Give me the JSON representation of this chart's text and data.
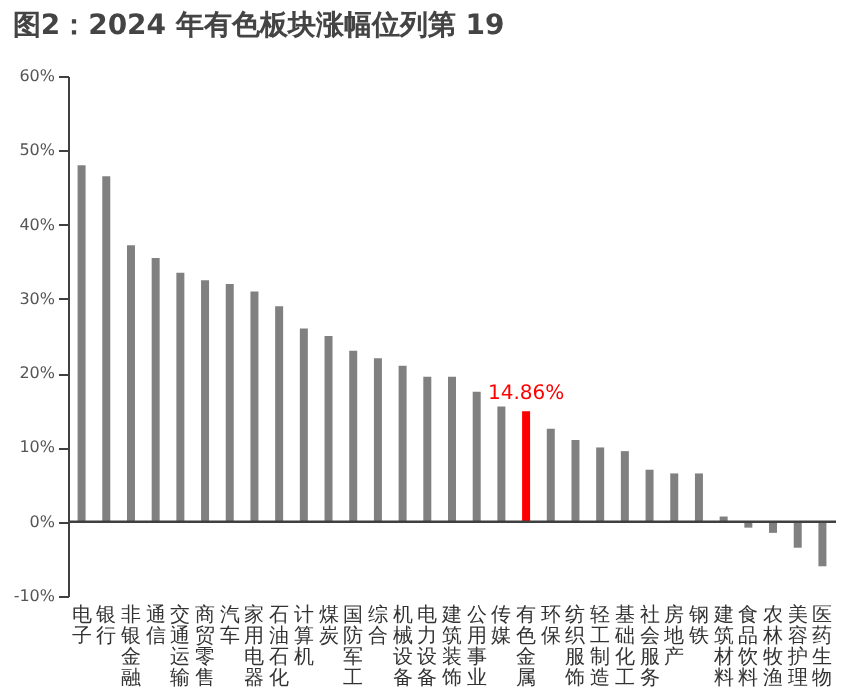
{
  "chart_data": {
    "type": "bar",
    "title": "图2：2024 年有色板块涨幅位列第 19",
    "categories": [
      "电子",
      "银行",
      "非银金融",
      "通信",
      "交通运输",
      "商贸零售",
      "汽车",
      "家用电器",
      "石油石化",
      "计算机",
      "煤炭",
      "国防军工",
      "综合",
      "机械设备",
      "电力设备",
      "建筑装饰",
      "公用事业",
      "传媒",
      "有色金属",
      "环保",
      "纺织服饰",
      "轻工制造",
      "基础化工",
      "社会服务",
      "房地产",
      "钢铁",
      "建筑材料",
      "食品饮料",
      "农林牧渔",
      "美容护理",
      "医药生物"
    ],
    "values": [
      48,
      46.5,
      37.2,
      35.5,
      33.5,
      32.5,
      32,
      31,
      29,
      26,
      25,
      23,
      22,
      21,
      19.5,
      19.5,
      17.5,
      15.5,
      14.86,
      12.5,
      11,
      10,
      9.5,
      7,
      6.5,
      6.5,
      0.7,
      -0.8,
      -1.5,
      -3.5,
      -6
    ],
    "colors": [
      "#808080",
      "#808080",
      "#808080",
      "#808080",
      "#808080",
      "#808080",
      "#808080",
      "#808080",
      "#808080",
      "#808080",
      "#808080",
      "#808080",
      "#808080",
      "#808080",
      "#808080",
      "#808080",
      "#808080",
      "#808080",
      "#ff0000",
      "#808080",
      "#808080",
      "#808080",
      "#808080",
      "#808080",
      "#808080",
      "#808080",
      "#808080",
      "#808080",
      "#808080",
      "#808080",
      "#808080"
    ],
    "value_labels": [
      null,
      null,
      null,
      null,
      null,
      null,
      null,
      null,
      null,
      null,
      null,
      null,
      null,
      null,
      null,
      null,
      null,
      null,
      "14.86%",
      null,
      null,
      null,
      null,
      null,
      null,
      null,
      null,
      null,
      null,
      null,
      null
    ],
    "ylim": [
      -10,
      60
    ],
    "yticks": [
      {
        "value": -10,
        "label": "-10%"
      },
      {
        "value": 0,
        "label": "0%"
      },
      {
        "value": 10,
        "label": "10%"
      },
      {
        "value": 20,
        "label": "20%"
      },
      {
        "value": 30,
        "label": "30%"
      },
      {
        "value": 40,
        "label": "40%"
      },
      {
        "value": 50,
        "label": "50%"
      },
      {
        "value": 60,
        "label": "60%"
      }
    ],
    "ref_lines": [
      {
        "axis": "y",
        "value": 0,
        "color": "#404040"
      }
    ],
    "grid": false
  }
}
